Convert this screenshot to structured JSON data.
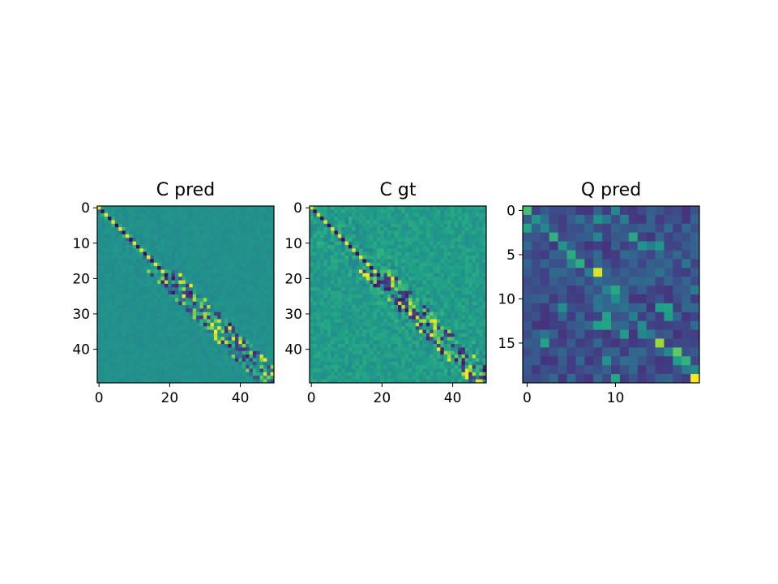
{
  "chart_data": [
    {
      "type": "heatmap",
      "title": "C pred",
      "rows": 50,
      "cols": 50,
      "x_ticks": [
        0,
        20,
        40
      ],
      "y_ticks": [
        0,
        10,
        20,
        30,
        40
      ],
      "colormap": "viridis",
      "background_value": 0.5,
      "pattern": "strong alternating bright/dark main diagonal in first ~20 rows, then scattered band of bright and dark cells around the diagonal widening toward bottom-right"
    },
    {
      "type": "heatmap",
      "title": "C gt",
      "rows": 50,
      "cols": 50,
      "x_ticks": [
        0,
        20,
        40
      ],
      "y_ticks": [
        0,
        10,
        20,
        30,
        40
      ],
      "colormap": "viridis",
      "background_value": 0.55,
      "pattern": "similar diagonal structure to C pred with more off-diagonal noise"
    },
    {
      "type": "heatmap",
      "title": "Q pred",
      "rows": 20,
      "cols": 20,
      "x_ticks": [
        0,
        10
      ],
      "y_ticks": [
        0,
        5,
        10,
        15
      ],
      "colormap": "viridis",
      "background_value": 0.15,
      "highlights": [
        {
          "row": 0,
          "col": 0,
          "value": 0.7
        },
        {
          "row": 7,
          "col": 8,
          "value": 0.95
        },
        {
          "row": 15,
          "col": 15,
          "value": 0.85
        },
        {
          "row": 16,
          "col": 17,
          "value": 0.75
        },
        {
          "row": 17,
          "col": 18,
          "value": 0.65
        },
        {
          "row": 19,
          "col": 19,
          "value": 1.0
        }
      ]
    }
  ]
}
